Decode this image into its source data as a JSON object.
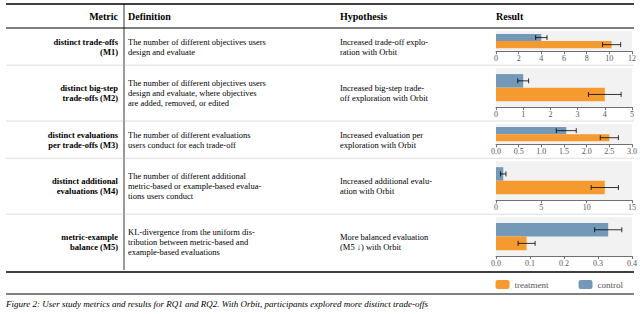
{
  "title": "Figure 2: User study metrics and results for RQ1 and RQ2. With Orbit, participants explored more distinct trade-offs",
  "annotations": [
    "Metric",
    "Definition",
    "Hypothesis",
    "Result"
  ],
  "legend": "lower right",
  "chart_data": [
    {
      "type": "bar",
      "orientation": "horizontal",
      "title": "distinct trade-offs\n(M1)",
      "annotations": [
        "The number of different objectives users\ndesign and evaluate",
        "Increased trade-off explo-\nration with Orbit"
      ],
      "categories": [
        null
      ],
      "series": [
        {
          "name": "control",
          "color": "#7499b8",
          "values": [
            4.0
          ],
          "errors": [
            0.5
          ]
        },
        {
          "name": "treatment",
          "color": "#f59a2e",
          "values": [
            10.2
          ],
          "errors": [
            0.8
          ]
        }
      ],
      "xlim": [
        0,
        12
      ],
      "xticks": [
        0,
        2,
        4,
        6,
        8,
        10,
        12
      ],
      "grid": false
    },
    {
      "type": "bar",
      "orientation": "horizontal",
      "title": "distinct big-step\ntrade-offs (M2)",
      "annotations": [
        "The number of different objectives users\ndesign and evaluate, where objectives\nare added, removed, or edited",
        "Increased big-step trade-\noff exploration with Orbit"
      ],
      "categories": [
        null
      ],
      "series": [
        {
          "name": "control",
          "color": "#7499b8",
          "values": [
            1.0
          ],
          "errors": [
            0.2
          ]
        },
        {
          "name": "treatment",
          "color": "#f59a2e",
          "values": [
            4.0
          ],
          "errors": [
            0.6
          ]
        }
      ],
      "xlim": [
        0,
        5
      ],
      "xticks": [
        0,
        1,
        2,
        3,
        4,
        5
      ],
      "grid": false
    },
    {
      "type": "bar",
      "orientation": "horizontal",
      "title": "distinct evaluations\nper trade-offs (M3)",
      "annotations": [
        "The number of different evaluations\nusers conduct for each trade-off",
        "Increased evaluation per\nexploration with Orbit"
      ],
      "categories": [
        null
      ],
      "series": [
        {
          "name": "control",
          "color": "#7499b8",
          "values": [
            1.55
          ],
          "errors": [
            0.22
          ]
        },
        {
          "name": "treatment",
          "color": "#f59a2e",
          "values": [
            2.5
          ],
          "errors": [
            0.2
          ]
        }
      ],
      "xlim": [
        0,
        3.0
      ],
      "xticks": [
        {
          "value": 0,
          "label": "0.0"
        },
        0.5,
        {
          "value": 1,
          "label": "1.0"
        },
        1.5,
        {
          "value": 2,
          "label": "2.0"
        },
        2.5,
        {
          "value": 3,
          "label": "3.0"
        }
      ],
      "grid": false
    },
    {
      "type": "bar",
      "orientation": "horizontal",
      "title": "distinct additional\nevaluations (M4)",
      "annotations": [
        "The number of different additional\nmetric-based or example-based evalua-\ntions users conduct",
        "Increased additional evalu-\nation with Orbit"
      ],
      "categories": [
        null
      ],
      "series": [
        {
          "name": "control",
          "color": "#7499b8",
          "values": [
            0.8
          ],
          "errors": [
            0.3
          ]
        },
        {
          "name": "treatment",
          "color": "#f59a2e",
          "values": [
            12.0
          ],
          "errors": [
            1.5
          ]
        }
      ],
      "xlim": [
        0,
        15
      ],
      "xticks": [
        0,
        5,
        10,
        15
      ],
      "grid": false
    },
    {
      "type": "bar",
      "orientation": "horizontal",
      "title": "metric-example\nbalance (M5)",
      "annotations": [
        "KL-divergence from the uniform dis-\ntribution between metric-based and\nexample-based evaluations",
        "More balanced evaluation\n(M5 ↓) with Orbit"
      ],
      "categories": [
        null
      ],
      "series": [
        {
          "name": "control",
          "color": "#7499b8",
          "values": [
            0.33
          ],
          "errors": [
            0.04
          ]
        },
        {
          "name": "treatment",
          "color": "#f59a2e",
          "values": [
            0.09
          ],
          "errors": [
            0.025
          ]
        }
      ],
      "xlim": [
        0,
        0.4
      ],
      "xticks": [
        {
          "value": 0,
          "label": "0.0"
        },
        0.1,
        0.2,
        0.3,
        0.4
      ],
      "grid": false
    }
  ]
}
